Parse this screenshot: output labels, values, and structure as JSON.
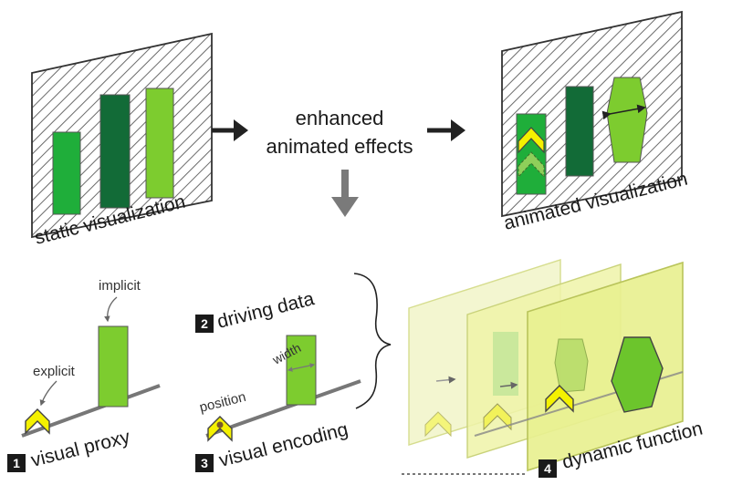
{
  "top": {
    "static_label": "static visualization",
    "center_line1": "enhanced",
    "center_line2": "animated effects",
    "animated_label": "animated visualization"
  },
  "panel1": {
    "badge": "1",
    "label": "visual proxy",
    "explicit": "explicit",
    "implicit": "implicit"
  },
  "panel23": {
    "badge2": "2",
    "driving_data": "driving data",
    "badge3": "3",
    "visual_encoding": "visual encoding",
    "position": "position",
    "width": "width"
  },
  "panel4": {
    "badge": "4",
    "label": "dynamic function"
  },
  "colors": {
    "bright_green": "#7dcc2f",
    "mid_green": "#1fae3a",
    "dark_green": "#126b37",
    "yellow": "#f4f100",
    "plane": "#eef3a8",
    "hatch": "#555555",
    "badge": "#1a1a1a"
  }
}
